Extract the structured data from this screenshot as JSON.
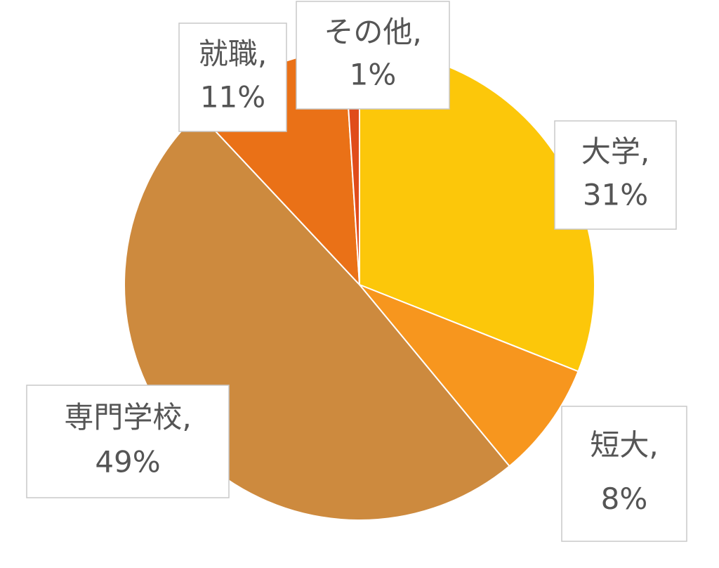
{
  "chart_data": {
    "type": "pie",
    "categories": [
      "大学",
      "短大",
      "専門学校",
      "就職",
      "その他"
    ],
    "values": [
      31,
      8,
      49,
      11,
      1
    ],
    "value_labels": [
      "31%",
      "8%",
      "49%",
      "11%",
      "1%"
    ],
    "label_separator": ",",
    "colors": [
      "#fcc70a",
      "#f7961e",
      "#cd8a3e",
      "#ea7117",
      "#e04c1a"
    ],
    "start_angle": 0,
    "direction": "clockwise"
  }
}
